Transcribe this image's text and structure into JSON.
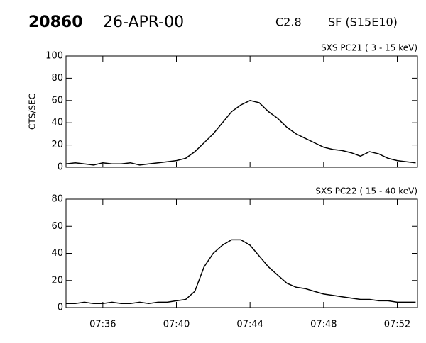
{
  "header": {
    "id": "20860",
    "date": "26-APR-00",
    "class": "C2.8",
    "flare": "SF (S15E10)"
  },
  "chart_data": [
    {
      "type": "line",
      "title": "SXS PC21  (  3 - 15 keV)",
      "ylabel": "CTS/SEC",
      "x": [
        454,
        454.5,
        455,
        455.5,
        456,
        456.5,
        457,
        457.5,
        458,
        458.5,
        459,
        459.5,
        460,
        460.5,
        461,
        461.5,
        462,
        462.5,
        463,
        463.5,
        464,
        464.5,
        465,
        465.5,
        466,
        466.5,
        467,
        467.5,
        468,
        468.5,
        469,
        469.5,
        470,
        470.5,
        471,
        471.5,
        472,
        472.5,
        473
      ],
      "values": [
        3,
        4,
        3,
        2,
        4,
        3,
        3,
        4,
        2,
        3,
        4,
        5,
        6,
        8,
        14,
        22,
        30,
        40,
        50,
        56,
        60,
        58,
        50,
        44,
        36,
        30,
        26,
        22,
        18,
        16,
        15,
        13,
        10,
        14,
        12,
        8,
        6,
        5,
        4
      ],
      "color": "#000000",
      "xlim": [
        454,
        473.1
      ],
      "ylim": [
        0,
        100
      ],
      "yticks": [
        0,
        20,
        40,
        60,
        80,
        100
      ]
    },
    {
      "type": "line",
      "title": "SXS PC22  ( 15 - 40 keV)",
      "x": [
        454,
        454.5,
        455,
        455.5,
        456,
        456.5,
        457,
        457.5,
        458,
        458.5,
        459,
        459.5,
        460,
        460.5,
        461,
        461.5,
        462,
        462.5,
        463,
        463.5,
        464,
        464.5,
        465,
        465.5,
        466,
        466.5,
        467,
        467.5,
        468,
        468.5,
        469,
        469.5,
        470,
        470.5,
        471,
        471.5,
        472,
        472.5,
        473
      ],
      "values": [
        3,
        3,
        4,
        3,
        3,
        4,
        3,
        3,
        4,
        3,
        4,
        4,
        5,
        6,
        12,
        30,
        40,
        46,
        50,
        50,
        46,
        38,
        30,
        24,
        18,
        15,
        14,
        12,
        10,
        9,
        8,
        7,
        6,
        6,
        5,
        5,
        4,
        4,
        4
      ],
      "color": "#000000",
      "xlim": [
        454,
        473.1
      ],
      "ylim": [
        0,
        80
      ],
      "yticks": [
        0,
        20,
        40,
        60,
        80
      ],
      "xticks": [
        {
          "value": 456,
          "label": "07:36"
        },
        {
          "value": 460,
          "label": "07:40"
        },
        {
          "value": 464,
          "label": "07:44"
        },
        {
          "value": 468,
          "label": "07:48"
        },
        {
          "value": 472,
          "label": "07:52"
        }
      ]
    }
  ]
}
